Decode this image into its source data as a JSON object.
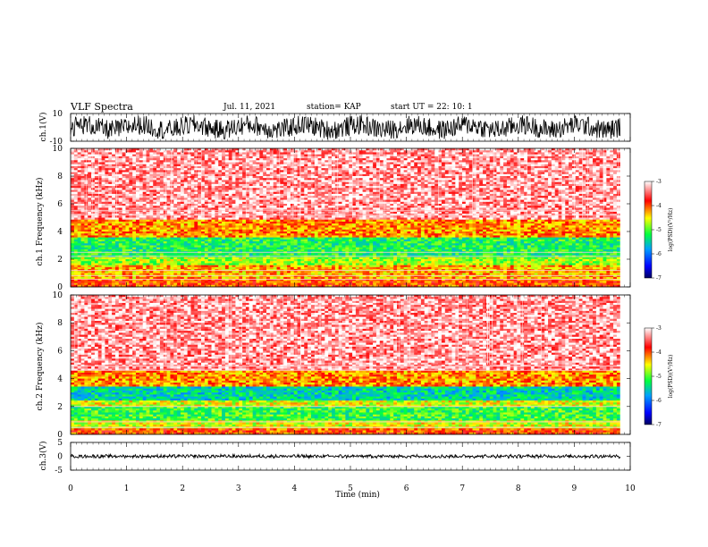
{
  "header": {
    "title": "VLF Spectra",
    "date": "Jul. 11, 2021",
    "station": "station= KAP",
    "start_ut": "start UT = 22: 10: 1"
  },
  "colors": {
    "spectrogram_background": "#ffffff",
    "colormap": [
      "#000060",
      "#0000ff",
      "#00a0ff",
      "#00ff40",
      "#ffff00",
      "#ff0000",
      "#ffffff"
    ],
    "trace": "#000000"
  },
  "chart_data": [
    {
      "type": "line",
      "name": "ch1-waveform",
      "ylabel": "ch.1(V)",
      "xlim": [
        0,
        10
      ],
      "ylim": [
        -10,
        10
      ],
      "yticks": [
        "10",
        "-10"
      ],
      "x_data_end": 9.82,
      "amplitude_range": [
        -9.5,
        9.5
      ]
    },
    {
      "type": "heatmap",
      "name": "ch1-spectrogram",
      "ylabel": "ch.1 Frequency (kHz)",
      "xlim": [
        0,
        10
      ],
      "ylim": [
        0,
        10
      ],
      "yticks": [
        "0",
        "2",
        "4",
        "6",
        "8",
        "10"
      ],
      "x_data_end": 9.82,
      "colorbar": {
        "label": "log(PSD)(V²/Hz)",
        "range": [
          -7,
          -3
        ],
        "ticks": [
          "-3",
          "-4",
          "-5",
          "-6",
          "-7"
        ]
      },
      "bands_khz": [
        {
          "from": 0.0,
          "to": 0.6,
          "log_psd": -4.0
        },
        {
          "from": 0.6,
          "to": 1.6,
          "log_psd": -4.3
        },
        {
          "from": 1.6,
          "to": 2.2,
          "log_psd": -4.8
        },
        {
          "from": 2.2,
          "to": 3.6,
          "log_psd": -5.2
        },
        {
          "from": 3.6,
          "to": 4.8,
          "log_psd": -4.2
        },
        {
          "from": 4.8,
          "to": 10.0,
          "log_psd": -3.3
        }
      ],
      "lines_khz": [
        0.55,
        0.8,
        1.2,
        2.2,
        2.5,
        5.2,
        5.5
      ]
    },
    {
      "type": "heatmap",
      "name": "ch2-spectrogram",
      "ylabel": "ch.2 Frequency (kHz)",
      "xlim": [
        0,
        10
      ],
      "ylim": [
        0,
        10
      ],
      "yticks": [
        "0",
        "2",
        "4",
        "6",
        "8",
        "10"
      ],
      "x_data_end": 9.82,
      "colorbar": {
        "label": "log(PSD)(V²/Hz)",
        "range": [
          -7,
          -3
        ],
        "ticks": [
          "-3",
          "-4",
          "-5",
          "-6",
          "-7"
        ]
      },
      "bands_khz": [
        {
          "from": 0.0,
          "to": 0.5,
          "log_psd": -4.0
        },
        {
          "from": 0.5,
          "to": 1.0,
          "log_psd": -4.6
        },
        {
          "from": 1.0,
          "to": 2.0,
          "log_psd": -5.1
        },
        {
          "from": 2.0,
          "to": 2.4,
          "log_psd": -4.6
        },
        {
          "from": 2.4,
          "to": 3.4,
          "log_psd": -5.5
        },
        {
          "from": 3.4,
          "to": 4.6,
          "log_psd": -4.2
        },
        {
          "from": 4.6,
          "to": 10.0,
          "log_psd": -3.3
        }
      ],
      "lines_khz": [
        0.5,
        0.9,
        2.0,
        4.6,
        4.9
      ]
    },
    {
      "type": "line",
      "name": "ch3-waveform",
      "ylabel": "ch.3(V)",
      "xlim": [
        0,
        10
      ],
      "ylim": [
        -5,
        5
      ],
      "yticks": [
        "5",
        "0",
        "-5"
      ],
      "x_data_end": 9.82,
      "offset": 0,
      "amplitude_range": [
        -0.5,
        0.5
      ]
    }
  ],
  "x_axis": {
    "label": "Time (min)",
    "ticks": [
      "0",
      "1",
      "2",
      "3",
      "4",
      "5",
      "6",
      "7",
      "8",
      "9",
      "10"
    ]
  }
}
